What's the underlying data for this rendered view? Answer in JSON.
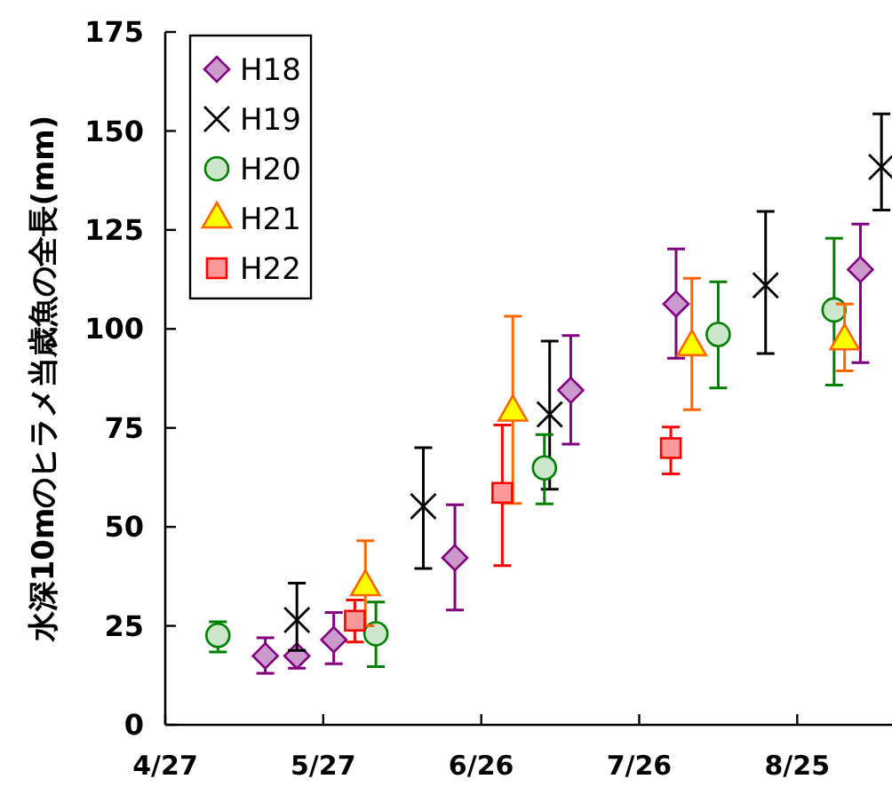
{
  "chart_data": {
    "type": "scatter",
    "ylabel": "水深10mのヒラメ当歳魚の全長(mm)",
    "xlim": [
      "--04-27",
      "--09-12"
    ],
    "xticks": [
      {
        "value": "--04-27",
        "label": "4/27"
      },
      {
        "value": "--05-27",
        "label": "5/27"
      },
      {
        "value": "--06-26",
        "label": "6/26"
      },
      {
        "value": "--07-26",
        "label": "7/26"
      },
      {
        "value": "--08-25",
        "label": "8/25"
      }
    ],
    "ylim": [
      0,
      175
    ],
    "yticks": [
      0,
      25,
      50,
      75,
      100,
      125,
      150,
      175
    ],
    "grid": false,
    "legend": "top left",
    "series": [
      {
        "name": "H18",
        "color": "#800080",
        "marker": "diamond",
        "x": [
          "--05-16",
          "--05-22",
          "--05-29",
          "--06-21",
          "--07-13",
          "--08-02",
          "--09-06"
        ],
        "values": [
          17.4,
          17.4,
          21.5,
          42.2,
          84.5,
          106.3,
          115
        ],
        "errors": [
          [
            13,
            22
          ],
          [
            14.3,
            18.8
          ],
          [
            15.4,
            28.4
          ],
          [
            29,
            55.6
          ],
          [
            70.9,
            98.3
          ],
          [
            92.6,
            120.2
          ],
          [
            91.5,
            126.5
          ]
        ]
      },
      {
        "name": "H19",
        "color": "#000000",
        "marker": "cross",
        "x": [
          "--05-22",
          "--06-15",
          "--07-09",
          "--08-19",
          "--09-10"
        ],
        "values": [
          26.5,
          55.2,
          78.4,
          111,
          140.9
        ],
        "errors": [
          [
            18.8,
            35.8
          ],
          [
            39.5,
            70
          ],
          [
            59.5,
            96.9
          ],
          [
            93.8,
            129.7
          ],
          [
            130,
            154.3
          ]
        ]
      },
      {
        "name": "H20",
        "color": "#008000",
        "marker": "circle",
        "x": [
          "--05-07",
          "--06-06",
          "--07-08",
          "--08-10",
          "--09-01"
        ],
        "values": [
          22.6,
          23,
          64.9,
          98.6,
          104.8
        ],
        "errors": [
          [
            18.4,
            26
          ],
          [
            14.7,
            31
          ],
          [
            55.8,
            73.3
          ],
          [
            85.1,
            111.9
          ],
          [
            85.8,
            122.9
          ]
        ]
      },
      {
        "name": "H21",
        "color": "#ff6600",
        "marker": "triangle",
        "x": [
          "--06-04",
          "--07-02",
          "--08-05",
          "--09-03"
        ],
        "values": [
          35,
          79.1,
          95.6,
          97.1
        ],
        "errors": [
          [
            25,
            46.5
          ],
          [
            55.9,
            103.2
          ],
          [
            79.6,
            112.8
          ],
          [
            89.4,
            106.3
          ]
        ]
      },
      {
        "name": "H22",
        "color": "#ff0000",
        "marker": "square",
        "x": [
          "--06-02",
          "--06-30",
          "--08-01"
        ],
        "values": [
          26.3,
          58.6,
          69.9
        ],
        "errors": [
          [
            20.9,
            31.5
          ],
          [
            40.2,
            75.7
          ],
          [
            63.4,
            75.2
          ]
        ]
      }
    ]
  }
}
